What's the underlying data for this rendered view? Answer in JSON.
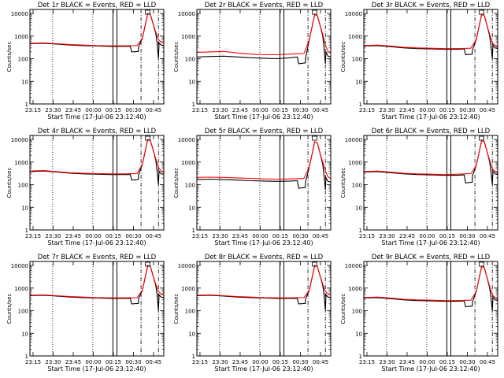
{
  "figure": {
    "start_time_label": "Start Time (17-Jul-06 23:12:40)",
    "ylabel": "Counts/sec",
    "xtick_labels": [
      "23:15",
      "23:30",
      "23:45",
      "00:00",
      "00:15",
      "00:30",
      "00:45"
    ],
    "ytick_labels": [
      "1",
      "10",
      "100",
      "1000",
      "10000"
    ],
    "colors": {
      "events": "#000000",
      "lld": "#ff0000",
      "axes": "#000000",
      "background": "#ffffff"
    }
  },
  "chart_data": [
    {
      "type": "line",
      "title": "Det 1r BLACK = Events, RED = LLD",
      "xlabel": "Start Time (17-Jul-06 23:12:40)",
      "ylabel": "Counts/sec",
      "x_unit": "minutes after 23:12:40",
      "ylim": [
        1,
        15000
      ],
      "ylog": true,
      "vlines": {
        "dotted": [
          17,
          47
        ],
        "solid": [
          62,
          65
        ],
        "dashdot": [
          83,
          96
        ]
      },
      "series": [
        {
          "name": "Events",
          "color": "#000000",
          "x": [
            0,
            10,
            20,
            30,
            40,
            50,
            60,
            70,
            75,
            76,
            81,
            81.1,
            84,
            88,
            90,
            92,
            94,
            95,
            96,
            96.5,
            98,
            100
          ],
          "y": [
            460,
            480,
            440,
            400,
            380,
            360,
            350,
            350,
            350,
            200,
            210,
            330,
            800,
            10000,
            9000,
            3500,
            1300,
            500,
            100,
            500,
            400,
            380
          ]
        },
        {
          "name": "LLD",
          "color": "#ff0000",
          "x": [
            0,
            10,
            20,
            30,
            40,
            50,
            60,
            70,
            80,
            84,
            88,
            90,
            92,
            94,
            96,
            98,
            100
          ],
          "y": [
            480,
            500,
            460,
            420,
            400,
            380,
            370,
            370,
            380,
            800,
            10000,
            9000,
            3500,
            1500,
            700,
            550,
            480
          ]
        }
      ]
    },
    {
      "type": "line",
      "title": "Det 2r BLACK = Events, RED = LLD",
      "xlabel": "Start Time (17-Jul-06 23:12:40)",
      "ylabel": "Counts/sec",
      "x_unit": "minutes after 23:12:40",
      "ylim": [
        1,
        15000
      ],
      "ylog": true,
      "vlines": {
        "dotted": [
          17,
          47
        ],
        "solid": [
          62,
          65
        ],
        "dashdot": [
          83,
          96
        ]
      },
      "series": [
        {
          "name": "Events",
          "color": "#000000",
          "x": [
            0,
            10,
            20,
            30,
            40,
            50,
            60,
            70,
            75,
            76,
            81,
            81.1,
            84,
            88,
            90,
            92,
            94,
            95,
            96,
            96.5,
            98,
            100
          ],
          "y": [
            120,
            125,
            130,
            120,
            110,
            105,
            100,
            110,
            120,
            60,
            65,
            100,
            700,
            9000,
            8000,
            3000,
            1000,
            300,
            60,
            200,
            130,
            120
          ]
        },
        {
          "name": "LLD",
          "color": "#ff0000",
          "x": [
            0,
            10,
            20,
            30,
            40,
            50,
            60,
            70,
            80,
            84,
            88,
            90,
            92,
            94,
            96,
            98,
            100
          ],
          "y": [
            190,
            200,
            210,
            180,
            160,
            150,
            150,
            160,
            170,
            700,
            9000,
            8000,
            3000,
            1200,
            400,
            200,
            180
          ]
        }
      ]
    },
    {
      "type": "line",
      "title": "Det 3r BLACK = Events, RED = LLD",
      "xlabel": "Start Time (17-Jul-06 23:12:40)",
      "ylabel": "Counts/sec",
      "x_unit": "minutes after 23:12:40",
      "ylim": [
        1,
        15000
      ],
      "ylog": true,
      "vlines": {
        "dotted": [
          17,
          47
        ],
        "solid": [
          62,
          65
        ],
        "dashdot": [
          83,
          96
        ]
      },
      "series": [
        {
          "name": "Events",
          "color": "#000000",
          "x": [
            0,
            10,
            20,
            30,
            40,
            50,
            60,
            70,
            75,
            76,
            81,
            81.1,
            84,
            88,
            90,
            92,
            94,
            95,
            96,
            96.5,
            98,
            100
          ],
          "y": [
            360,
            380,
            340,
            300,
            280,
            270,
            260,
            260,
            270,
            150,
            160,
            240,
            700,
            9000,
            8000,
            3000,
            1000,
            350,
            100,
            400,
            300,
            280
          ]
        },
        {
          "name": "LLD",
          "color": "#ff0000",
          "x": [
            0,
            10,
            20,
            30,
            40,
            50,
            60,
            70,
            80,
            84,
            88,
            90,
            92,
            94,
            96,
            98,
            100
          ],
          "y": [
            380,
            400,
            360,
            320,
            300,
            290,
            280,
            280,
            290,
            700,
            9000,
            8000,
            3000,
            1200,
            500,
            380,
            320
          ]
        }
      ]
    },
    {
      "type": "line",
      "title": "Det 4r BLACK = Events, RED = LLD",
      "xlabel": "Start Time (17-Jul-06 23:12:40)",
      "ylabel": "Counts/sec",
      "x_unit": "minutes after 23:12:40",
      "ylim": [
        1,
        15000
      ],
      "ylog": true,
      "vlines": {
        "dotted": [
          17,
          47
        ],
        "solid": [
          62,
          65
        ],
        "dashdot": [
          83,
          96
        ]
      },
      "series": [
        {
          "name": "Events",
          "color": "#000000",
          "x": [
            0,
            10,
            20,
            30,
            40,
            50,
            60,
            70,
            75,
            76,
            81,
            81.1,
            84,
            88,
            90,
            92,
            94,
            95,
            96,
            96.5,
            98,
            100
          ],
          "y": [
            380,
            400,
            360,
            320,
            300,
            290,
            280,
            280,
            280,
            160,
            170,
            270,
            800,
            10000,
            9000,
            3500,
            1200,
            400,
            100,
            400,
            300,
            290
          ]
        },
        {
          "name": "LLD",
          "color": "#ff0000",
          "x": [
            0,
            10,
            20,
            30,
            40,
            50,
            60,
            70,
            80,
            84,
            88,
            90,
            92,
            94,
            96,
            98,
            100
          ],
          "y": [
            400,
            420,
            380,
            340,
            320,
            310,
            300,
            300,
            310,
            800,
            10000,
            9000,
            3500,
            1400,
            600,
            400,
            340
          ]
        }
      ]
    },
    {
      "type": "line",
      "title": "Det 5r BLACK = Events, RED = LLD",
      "xlabel": "Start Time (17-Jul-06 23:12:40)",
      "ylabel": "Counts/sec",
      "x_unit": "minutes after 23:12:40",
      "ylim": [
        1,
        15000
      ],
      "ylog": true,
      "vlines": {
        "dotted": [
          17,
          47
        ],
        "solid": [
          62,
          65
        ],
        "dashdot": [
          83,
          96
        ]
      },
      "series": [
        {
          "name": "Events",
          "color": "#000000",
          "x": [
            0,
            10,
            20,
            30,
            40,
            50,
            60,
            70,
            75,
            76,
            81,
            81.1,
            84,
            88,
            90,
            92,
            94,
            95,
            96,
            96.5,
            98,
            100
          ],
          "y": [
            170,
            175,
            170,
            160,
            150,
            145,
            140,
            145,
            150,
            70,
            75,
            130,
            600,
            8000,
            7000,
            2500,
            800,
            250,
            60,
            200,
            140,
            130
          ]
        },
        {
          "name": "LLD",
          "color": "#ff0000",
          "x": [
            0,
            10,
            20,
            30,
            40,
            50,
            60,
            70,
            80,
            84,
            88,
            90,
            92,
            94,
            96,
            98,
            100
          ],
          "y": [
            210,
            215,
            210,
            200,
            190,
            180,
            175,
            180,
            190,
            600,
            8000,
            7000,
            2500,
            1000,
            400,
            220,
            190
          ]
        }
      ]
    },
    {
      "type": "line",
      "title": "Det 6r BLACK = Events, RED = LLD",
      "xlabel": "Start Time (17-Jul-06 23:12:40)",
      "ylabel": "Counts/sec",
      "x_unit": "minutes after 23:12:40",
      "ylim": [
        1,
        15000
      ],
      "ylog": true,
      "vlines": {
        "dotted": [
          17,
          47
        ],
        "solid": [
          62,
          65
        ],
        "dashdot": [
          83,
          96
        ]
      },
      "series": [
        {
          "name": "Events",
          "color": "#000000",
          "x": [
            0,
            10,
            20,
            30,
            40,
            50,
            60,
            70,
            75,
            76,
            81,
            81.1,
            84,
            88,
            90,
            92,
            94,
            95,
            96,
            96.5,
            98,
            100
          ],
          "y": [
            360,
            380,
            340,
            300,
            280,
            270,
            260,
            260,
            270,
            120,
            130,
            250,
            700,
            9000,
            8000,
            3000,
            1000,
            350,
            100,
            400,
            300,
            280
          ]
        },
        {
          "name": "LLD",
          "color": "#ff0000",
          "x": [
            0,
            10,
            20,
            30,
            40,
            50,
            60,
            70,
            80,
            84,
            88,
            90,
            92,
            94,
            96,
            98,
            100
          ],
          "y": [
            380,
            400,
            360,
            320,
            300,
            290,
            280,
            290,
            310,
            700,
            9000,
            8000,
            3000,
            1200,
            500,
            380,
            320
          ]
        }
      ]
    },
    {
      "type": "line",
      "title": "Det 7r BLACK = Events, RED = LLD",
      "xlabel": "Start Time (17-Jul-06 23:12:40)",
      "ylabel": "Counts/sec",
      "x_unit": "minutes after 23:12:40",
      "ylim": [
        1,
        15000
      ],
      "ylog": true,
      "vlines": {
        "dotted": [
          17,
          47
        ],
        "solid": [
          62,
          65
        ],
        "dashdot": [
          83,
          96
        ]
      },
      "series": [
        {
          "name": "Events",
          "color": "#000000",
          "x": [
            0,
            10,
            20,
            30,
            40,
            50,
            60,
            70,
            75,
            76,
            81,
            81.1,
            84,
            88,
            90,
            92,
            94,
            95,
            96,
            96.5,
            98,
            100
          ],
          "y": [
            460,
            480,
            440,
            400,
            380,
            360,
            350,
            350,
            350,
            200,
            210,
            330,
            800,
            10000,
            9000,
            3500,
            1300,
            500,
            100,
            500,
            400,
            380
          ]
        },
        {
          "name": "LLD",
          "color": "#ff0000",
          "x": [
            0,
            10,
            20,
            30,
            40,
            50,
            60,
            70,
            80,
            84,
            88,
            90,
            92,
            94,
            96,
            98,
            100
          ],
          "y": [
            480,
            500,
            460,
            420,
            400,
            380,
            370,
            370,
            380,
            800,
            10000,
            9000,
            3500,
            1500,
            700,
            550,
            480
          ]
        }
      ]
    },
    {
      "type": "line",
      "title": "Det 8r BLACK = Events, RED = LLD",
      "xlabel": "Start Time (17-Jul-06 23:12:40)",
      "ylabel": "Counts/sec",
      "x_unit": "minutes after 23:12:40",
      "ylim": [
        1,
        15000
      ],
      "ylog": true,
      "vlines": {
        "dotted": [
          17,
          47
        ],
        "solid": [
          62,
          65
        ],
        "dashdot": [
          83,
          96
        ]
      },
      "series": [
        {
          "name": "Events",
          "color": "#000000",
          "x": [
            0,
            10,
            20,
            30,
            40,
            50,
            60,
            70,
            75,
            76,
            81,
            81.1,
            84,
            88,
            90,
            92,
            94,
            95,
            96,
            96.5,
            98,
            100
          ],
          "y": [
            460,
            480,
            440,
            400,
            380,
            360,
            350,
            350,
            350,
            200,
            210,
            330,
            800,
            10000,
            9000,
            3500,
            1300,
            500,
            100,
            500,
            400,
            380
          ]
        },
        {
          "name": "LLD",
          "color": "#ff0000",
          "x": [
            0,
            10,
            20,
            30,
            40,
            50,
            60,
            70,
            80,
            84,
            88,
            90,
            92,
            94,
            96,
            98,
            100
          ],
          "y": [
            480,
            500,
            460,
            420,
            400,
            380,
            370,
            370,
            380,
            800,
            10000,
            9000,
            3500,
            1500,
            700,
            550,
            480
          ]
        }
      ]
    },
    {
      "type": "line",
      "title": "Det 9r BLACK = Events, RED = LLD",
      "xlabel": "Start Time (17-Jul-06 23:12:40)",
      "ylabel": "Counts/sec",
      "x_unit": "minutes after 23:12:40",
      "ylim": [
        1,
        15000
      ],
      "ylog": true,
      "vlines": {
        "dotted": [
          17,
          47
        ],
        "solid": [
          62,
          65
        ],
        "dashdot": [
          83,
          96
        ]
      },
      "series": [
        {
          "name": "Events",
          "color": "#000000",
          "x": [
            0,
            10,
            20,
            30,
            40,
            50,
            60,
            70,
            75,
            76,
            81,
            81.1,
            84,
            88,
            90,
            92,
            94,
            95,
            96,
            96.5,
            98,
            100
          ],
          "y": [
            360,
            380,
            340,
            300,
            280,
            270,
            260,
            260,
            270,
            150,
            160,
            240,
            700,
            9000,
            8000,
            3000,
            1000,
            350,
            100,
            400,
            300,
            280
          ]
        },
        {
          "name": "LLD",
          "color": "#ff0000",
          "x": [
            0,
            10,
            20,
            30,
            40,
            50,
            60,
            70,
            80,
            84,
            88,
            90,
            92,
            94,
            96,
            98,
            100
          ],
          "y": [
            380,
            400,
            360,
            320,
            300,
            290,
            280,
            280,
            290,
            700,
            9000,
            8000,
            3000,
            1200,
            500,
            380,
            320
          ]
        }
      ]
    }
  ]
}
